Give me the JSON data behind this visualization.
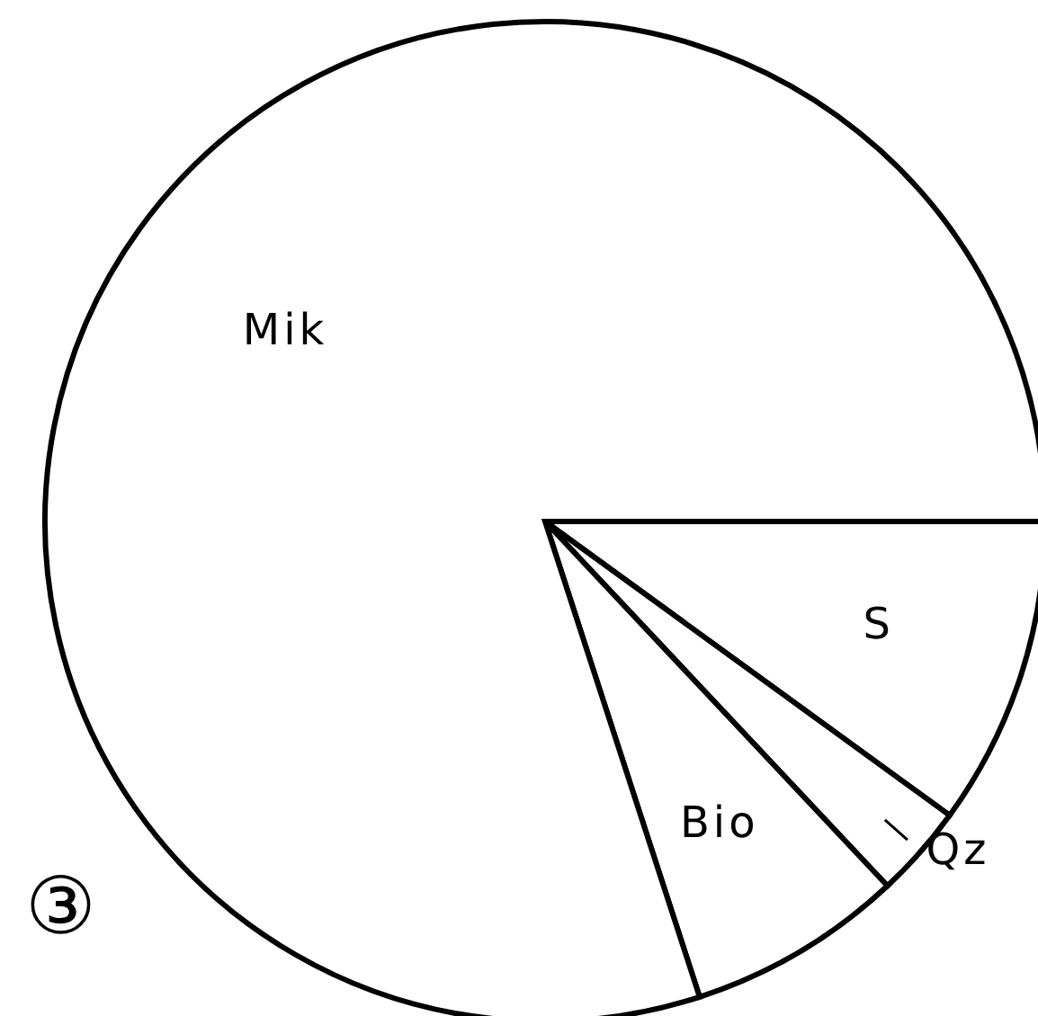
{
  "chart_data": {
    "type": "pie",
    "categories": [
      "S",
      "Qz",
      "Bio",
      "Mik"
    ],
    "values": [
      10,
      3,
      7,
      80
    ],
    "colors": [
      "#ffffff",
      "#ffffff",
      "#ffffff",
      "#ffffff"
    ],
    "annotations": [
      "③"
    ]
  }
}
